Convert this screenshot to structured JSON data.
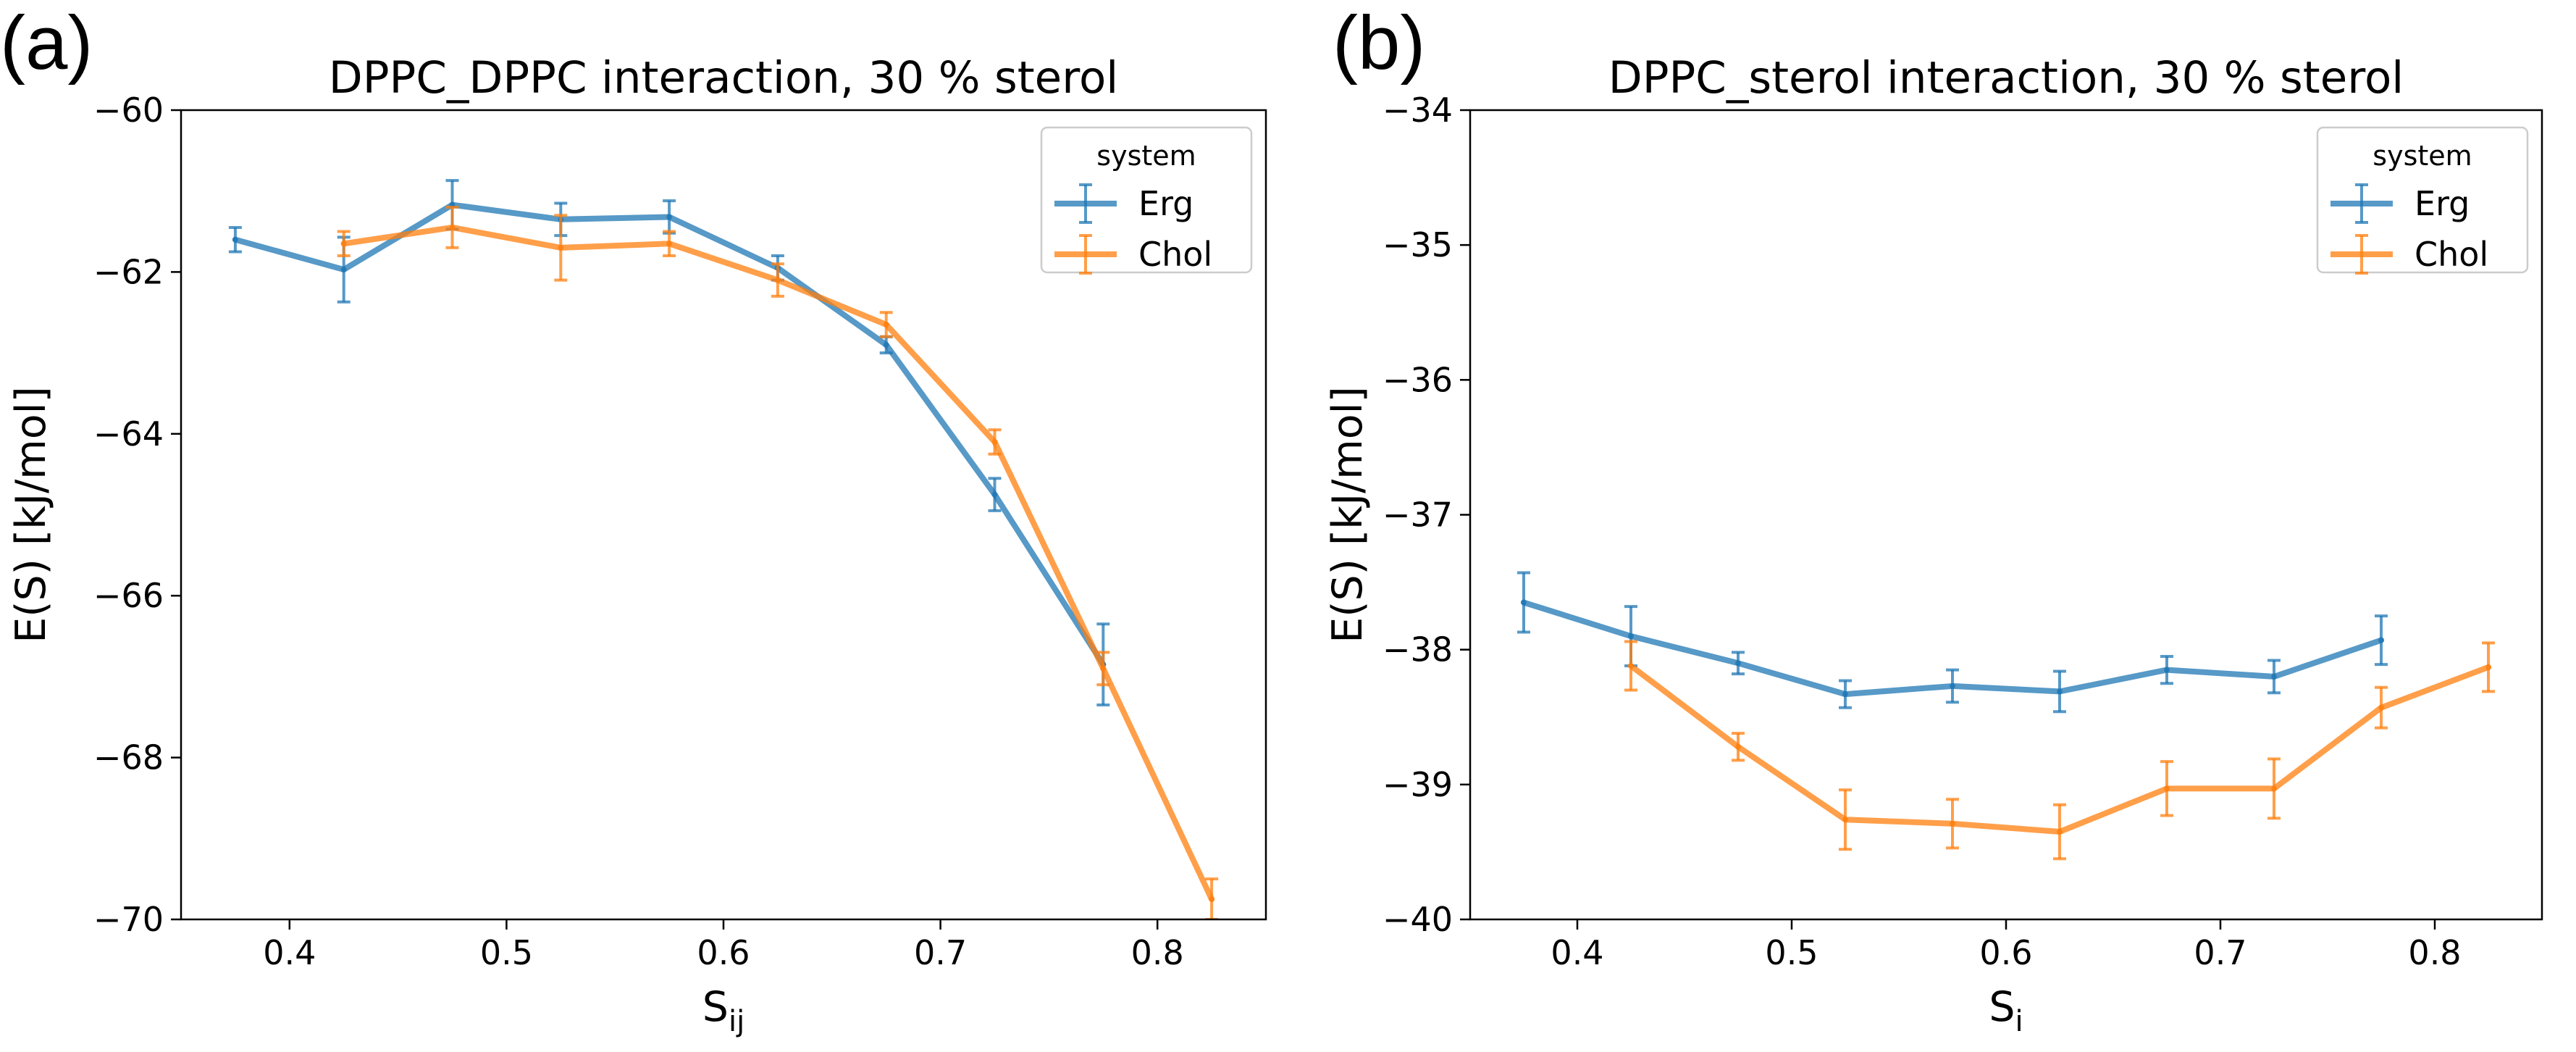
{
  "chart_data": [
    {
      "type": "line",
      "panel_label": "(a)",
      "title": "DPPC_DPPC interaction, 30 % sterol",
      "xlabel": "S",
      "xlabel_sub": "ij",
      "ylabel": "E(S) [kJ/mol]",
      "xlim": [
        0.35,
        0.85
      ],
      "ylim": [
        -70,
        -60
      ],
      "xticks": [
        0.4,
        0.5,
        0.6,
        0.7,
        0.8
      ],
      "xtick_labels": [
        "0.4",
        "0.5",
        "0.6",
        "0.7",
        "0.8"
      ],
      "yticks": [
        -70,
        -68,
        -66,
        -64,
        -62,
        -60
      ],
      "ytick_labels": [
        "−70",
        "−68",
        "−66",
        "−64",
        "−62",
        "−60"
      ],
      "legend": {
        "title": "system",
        "position": "top-right"
      },
      "series": [
        {
          "name": "Erg",
          "color": "#1f77b4",
          "x": [
            0.375,
            0.425,
            0.475,
            0.525,
            0.575,
            0.625,
            0.675,
            0.725,
            0.775
          ],
          "y": [
            -61.6,
            -61.97,
            -61.17,
            -61.35,
            -61.32,
            -61.95,
            -62.9,
            -64.75,
            -66.85
          ],
          "err": [
            0.15,
            0.4,
            0.3,
            0.2,
            0.2,
            0.15,
            0.1,
            0.2,
            0.5
          ]
        },
        {
          "name": "Chol",
          "color": "#ff7f0e",
          "x": [
            0.425,
            0.475,
            0.525,
            0.575,
            0.625,
            0.675,
            0.725,
            0.775,
            0.825
          ],
          "y": [
            -61.65,
            -61.45,
            -61.7,
            -61.65,
            -62.1,
            -62.65,
            -64.1,
            -66.9,
            -69.75
          ],
          "err": [
            0.15,
            0.25,
            0.4,
            0.15,
            0.2,
            0.15,
            0.15,
            0.2,
            0.25
          ]
        }
      ]
    },
    {
      "type": "line",
      "panel_label": "(b)",
      "title": "DPPC_sterol interaction, 30 % sterol",
      "xlabel": "S",
      "xlabel_sub": "i",
      "ylabel": "E(S) [kJ/mol]",
      "xlim": [
        0.35,
        0.85
      ],
      "ylim": [
        -40,
        -34
      ],
      "xticks": [
        0.4,
        0.5,
        0.6,
        0.7,
        0.8
      ],
      "xtick_labels": [
        "0.4",
        "0.5",
        "0.6",
        "0.7",
        "0.8"
      ],
      "yticks": [
        -40,
        -39,
        -38,
        -37,
        -36,
        -35,
        -34
      ],
      "ytick_labels": [
        "−40",
        "−39",
        "−38",
        "−37",
        "−36",
        "−35",
        "−34"
      ],
      "legend": {
        "title": "system",
        "position": "top-right"
      },
      "series": [
        {
          "name": "Erg",
          "color": "#1f77b4",
          "x": [
            0.375,
            0.425,
            0.475,
            0.525,
            0.575,
            0.625,
            0.675,
            0.725,
            0.775
          ],
          "y": [
            -37.65,
            -37.9,
            -38.1,
            -38.33,
            -38.27,
            -38.31,
            -38.15,
            -38.2,
            -37.93
          ],
          "err": [
            0.22,
            0.22,
            0.08,
            0.1,
            0.12,
            0.15,
            0.1,
            0.12,
            0.18
          ]
        },
        {
          "name": "Chol",
          "color": "#ff7f0e",
          "x": [
            0.425,
            0.475,
            0.525,
            0.575,
            0.625,
            0.675,
            0.725,
            0.775,
            0.825
          ],
          "y": [
            -38.12,
            -38.72,
            -39.26,
            -39.29,
            -39.35,
            -39.03,
            -39.03,
            -38.43,
            -38.13
          ],
          "err": [
            0.18,
            0.1,
            0.22,
            0.18,
            0.2,
            0.2,
            0.22,
            0.15,
            0.18
          ]
        }
      ]
    }
  ]
}
